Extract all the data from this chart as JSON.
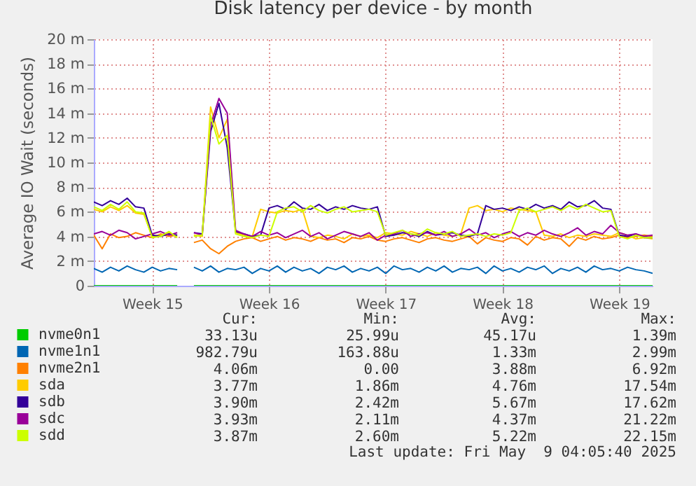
{
  "chart_data": {
    "type": "line",
    "title": "Disk latency per device - by month",
    "ylabel": "Average IO Wait (seconds)",
    "categories": [
      null,
      null,
      null,
      null,
      null,
      null,
      null,
      "Week 15",
      null,
      null,
      null,
      null,
      null,
      null,
      null,
      null,
      null,
      null,
      null,
      null,
      null,
      "Week 16",
      null,
      null,
      null,
      null,
      null,
      null,
      null,
      null,
      null,
      null,
      null,
      null,
      null,
      "Week 17",
      null,
      null,
      null,
      null,
      null,
      null,
      null,
      null,
      null,
      null,
      null,
      null,
      null,
      "Week 18",
      null,
      null,
      null,
      null,
      null,
      null,
      null,
      null,
      null,
      null,
      null,
      null,
      null,
      "Week 19",
      null,
      null,
      null,
      null
    ],
    "ylim": [
      0,
      20
    ],
    "yticks": [
      0,
      {
        "value": 2,
        "label": "2 m"
      },
      {
        "value": 4,
        "label": "4 m"
      },
      {
        "value": 6,
        "label": "6 m"
      },
      {
        "value": 8,
        "label": "8 m"
      },
      {
        "value": 10,
        "label": "10 m"
      },
      {
        "value": 12,
        "label": "12 m"
      },
      {
        "value": 14,
        "label": "14 m"
      },
      {
        "value": 16,
        "label": "16 m"
      },
      {
        "value": 18,
        "label": "18 m"
      },
      {
        "value": 20,
        "label": "20 m"
      }
    ],
    "grid": true,
    "legend": "bottom",
    "series": [
      {
        "name": "nvme0n1",
        "color": "#00cc00",
        "values": [
          0,
          0,
          0,
          0,
          0,
          0,
          0,
          0,
          0,
          0,
          0,
          null,
          0,
          0,
          0,
          0,
          0,
          0,
          0,
          0,
          0,
          0,
          0,
          0,
          0,
          0,
          0,
          0,
          0,
          0,
          0,
          0,
          0,
          0,
          0,
          0,
          0,
          0,
          0,
          0,
          0,
          0,
          0,
          0,
          0,
          0,
          0,
          0,
          0,
          0,
          0,
          0,
          0,
          0,
          0,
          0,
          0,
          0,
          0,
          0,
          0,
          0,
          0,
          0,
          0,
          0,
          0,
          0
        ]
      },
      {
        "name": "nvme1n1",
        "color": "#0066b3",
        "values": [
          1.4,
          1.1,
          1.5,
          1.2,
          1.6,
          1.3,
          1.1,
          1.5,
          1.2,
          1.4,
          1.3,
          null,
          1.5,
          1.2,
          1.6,
          1.1,
          1.4,
          1.3,
          1.5,
          1.0,
          1.4,
          1.2,
          1.6,
          1.1,
          1.5,
          1.2,
          1.4,
          1.0,
          1.5,
          1.3,
          1.6,
          1.1,
          1.4,
          1.2,
          1.5,
          1.0,
          1.6,
          1.3,
          1.4,
          1.1,
          1.5,
          1.2,
          1.6,
          1.1,
          1.4,
          1.3,
          1.5,
          1.0,
          1.6,
          1.2,
          1.4,
          1.1,
          1.5,
          1.3,
          1.6,
          1.0,
          1.4,
          1.2,
          1.5,
          1.1,
          1.6,
          1.3,
          1.4,
          1.2,
          1.5,
          1.3,
          1.2,
          1.0
        ]
      },
      {
        "name": "nvme2n1",
        "color": "#ff8000",
        "values": [
          4.1,
          3.0,
          4.2,
          3.9,
          4.0,
          4.3,
          4.1,
          3.9,
          4.2,
          4.0,
          4.1,
          null,
          3.5,
          3.7,
          3.0,
          2.6,
          3.2,
          3.6,
          3.8,
          3.9,
          3.6,
          3.8,
          4.0,
          3.7,
          3.9,
          3.8,
          3.6,
          3.9,
          3.7,
          3.8,
          3.5,
          3.9,
          3.8,
          4.0,
          3.7,
          3.6,
          3.8,
          3.9,
          3.7,
          3.5,
          3.8,
          3.9,
          3.7,
          3.6,
          3.8,
          4.0,
          3.4,
          3.9,
          3.7,
          3.6,
          3.9,
          3.8,
          3.3,
          4.0,
          3.7,
          3.9,
          3.8,
          3.2,
          3.9,
          3.7,
          4.0,
          3.8,
          3.9,
          4.1,
          3.9,
          4.0,
          4.1,
          4.0
        ]
      },
      {
        "name": "sda",
        "color": "#ffcc00",
        "values": [
          6.2,
          6.0,
          6.4,
          6.1,
          6.5,
          5.9,
          5.8,
          4.0,
          4.1,
          4.3,
          4.0,
          null,
          4.1,
          4.0,
          14.5,
          12.0,
          13.5,
          4.3,
          4.1,
          4.0,
          6.2,
          6.0,
          5.9,
          6.1,
          6.0,
          6.2,
          4.0,
          3.9,
          4.1,
          4.0,
          3.8,
          4.2,
          4.0,
          4.1,
          3.9,
          4.3,
          4.2,
          4.1,
          4.4,
          4.2,
          4.0,
          4.3,
          4.1,
          4.0,
          4.2,
          6.3,
          6.5,
          6.1,
          6.2,
          6.0,
          6.3,
          6.2,
          6.1,
          6.0,
          4.1,
          4.0,
          4.2,
          3.9,
          4.1,
          4.0,
          4.2,
          4.1,
          4.0,
          4.3,
          4.1,
          3.8,
          3.9,
          3.8
        ]
      },
      {
        "name": "sdb",
        "color": "#330099",
        "values": [
          6.8,
          6.5,
          6.9,
          6.6,
          7.1,
          6.4,
          6.3,
          4.1,
          4.0,
          4.2,
          4.1,
          null,
          4.3,
          4.2,
          12.5,
          14.8,
          11.2,
          4.4,
          4.2,
          4.0,
          4.1,
          6.3,
          6.5,
          6.2,
          6.8,
          6.3,
          6.2,
          6.6,
          6.1,
          6.4,
          6.2,
          6.5,
          6.3,
          6.2,
          6.4,
          4.0,
          4.1,
          4.3,
          4.2,
          4.0,
          4.4,
          4.1,
          4.2,
          4.3,
          4.1,
          4.0,
          4.2,
          6.5,
          6.2,
          6.3,
          6.1,
          6.4,
          6.2,
          6.6,
          6.3,
          6.5,
          6.2,
          6.8,
          6.4,
          6.5,
          6.9,
          6.3,
          6.2,
          4.1,
          4.0,
          4.2,
          3.9,
          3.9
        ]
      },
      {
        "name": "sdc",
        "color": "#990099",
        "values": [
          4.2,
          4.4,
          4.1,
          4.5,
          4.3,
          3.8,
          4.0,
          4.2,
          4.4,
          4.1,
          4.3,
          null,
          4.3,
          4.1,
          13.0,
          15.2,
          14.0,
          4.5,
          4.2,
          4.0,
          4.4,
          4.1,
          4.3,
          3.9,
          4.2,
          4.5,
          4.0,
          4.3,
          3.8,
          4.1,
          4.4,
          4.2,
          4.0,
          4.3,
          3.7,
          4.1,
          4.2,
          4.5,
          4.0,
          4.2,
          4.3,
          4.1,
          4.4,
          4.0,
          4.2,
          4.6,
          4.1,
          4.3,
          3.9,
          4.2,
          4.4,
          4.0,
          4.3,
          4.1,
          4.5,
          4.2,
          4.0,
          4.3,
          4.7,
          4.1,
          4.4,
          4.2,
          4.9,
          4.3,
          4.1,
          4.2,
          4.0,
          4.1
        ]
      },
      {
        "name": "sdd",
        "color": "#ccff00",
        "values": [
          6.4,
          6.1,
          6.6,
          6.2,
          6.8,
          6.0,
          5.9,
          3.9,
          4.0,
          4.4,
          3.9,
          null,
          4.0,
          4.1,
          13.8,
          11.5,
          12.2,
          4.2,
          4.0,
          3.9,
          4.1,
          4.0,
          6.0,
          6.3,
          6.4,
          6.0,
          6.5,
          6.1,
          5.9,
          6.2,
          6.4,
          6.0,
          6.1,
          6.2,
          6.0,
          4.1,
          4.3,
          4.5,
          4.2,
          4.1,
          4.6,
          4.3,
          4.2,
          4.4,
          4.0,
          4.1,
          4.2,
          4.0,
          4.2,
          4.1,
          4.3,
          6.1,
          6.3,
          6.0,
          6.2,
          6.4,
          6.1,
          6.5,
          6.2,
          6.6,
          6.3,
          6.0,
          6.1,
          4.0,
          3.8,
          4.1,
          3.9,
          3.9
        ]
      }
    ],
    "annotations": [
      "Cur:",
      "Min:",
      "Avg:",
      "Max:",
      "33.13u",
      "25.99u",
      "45.17u",
      "1.39m",
      "982.79u",
      "163.88u",
      "1.33m",
      "2.99m",
      "4.06m",
      "0.00",
      "3.88m",
      "6.92m",
      "3.77m",
      "1.86m",
      "4.76m",
      "17.54m",
      "3.90m",
      "2.42m",
      "5.67m",
      "17.62m",
      "3.93m",
      "2.11m",
      "4.37m",
      "21.22m",
      "3.87m",
      "2.60m",
      "5.22m",
      "22.15m",
      "Last update: Fri May  9 04:05:40 2025"
    ]
  }
}
